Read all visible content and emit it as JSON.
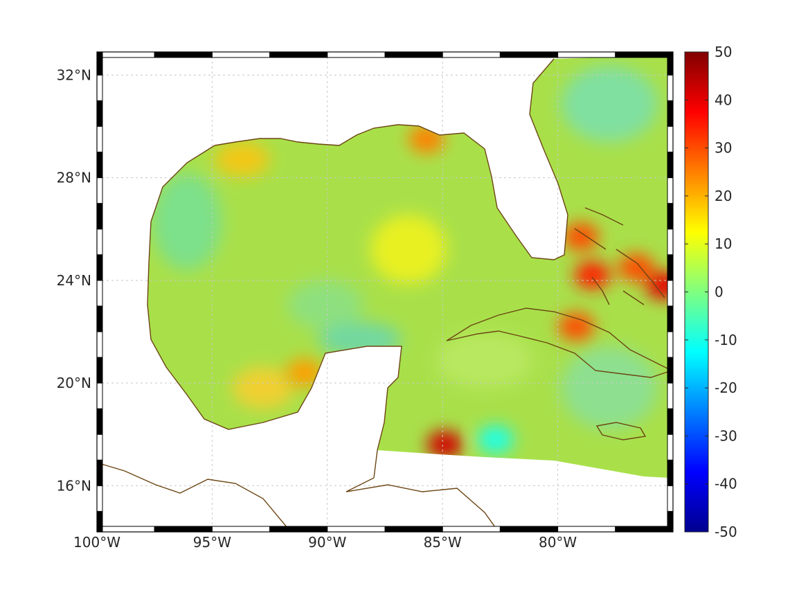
{
  "map": {
    "lon_range": [
      -100,
      -75
    ],
    "lat_range": [
      14.2,
      32.9
    ],
    "x_ticks": [
      {
        "lon": -100,
        "label": "100°W"
      },
      {
        "lon": -95,
        "label": "95°W"
      },
      {
        "lon": -90,
        "label": "90°W"
      },
      {
        "lon": -85,
        "label": "85°W"
      },
      {
        "lon": -80,
        "label": "80°W"
      }
    ],
    "y_ticks": [
      {
        "lat": 32,
        "label": "32°N"
      },
      {
        "lat": 28,
        "label": "28°N"
      },
      {
        "lat": 24,
        "label": "24°N"
      },
      {
        "lat": 20,
        "label": "20°N"
      },
      {
        "lat": 16,
        "label": "16°N"
      }
    ],
    "grid": true,
    "coast_color": "#6b4513",
    "field_background_color": "#a9e04a"
  },
  "colorbar": {
    "min": -50,
    "max": 50,
    "colormap": "jet",
    "tick_labels": [
      "50",
      "40",
      "30",
      "20",
      "10",
      "0",
      "-10",
      "-20",
      "-30",
      "-40",
      "-50"
    ]
  },
  "field_features": [
    {
      "name": "florida-straits-bahamas-high",
      "lon": -78.5,
      "lat": 24.2,
      "value": 35
    },
    {
      "name": "bahamas-east-high",
      "lon": -76.6,
      "lat": 24.5,
      "value": 30
    },
    {
      "name": "bahamas-north-high",
      "lon": -79.0,
      "lat": 25.7,
      "value": 30
    },
    {
      "name": "bahamas-far-east-high",
      "lon": -75.4,
      "lat": 23.8,
      "value": 40
    },
    {
      "name": "cuba-north-high",
      "lon": -79.2,
      "lat": 22.2,
      "value": 30
    },
    {
      "name": "caribbean-south-high",
      "lon": -84.9,
      "lat": 17.6,
      "value": 42
    },
    {
      "name": "apalachicola-high",
      "lon": -85.7,
      "lat": 29.5,
      "value": 25
    },
    {
      "name": "campeche-high",
      "lon": -91.0,
      "lat": 20.4,
      "value": 22
    },
    {
      "name": "caribbean-low",
      "lon": -82.7,
      "lat": 17.8,
      "value": -10
    }
  ]
}
